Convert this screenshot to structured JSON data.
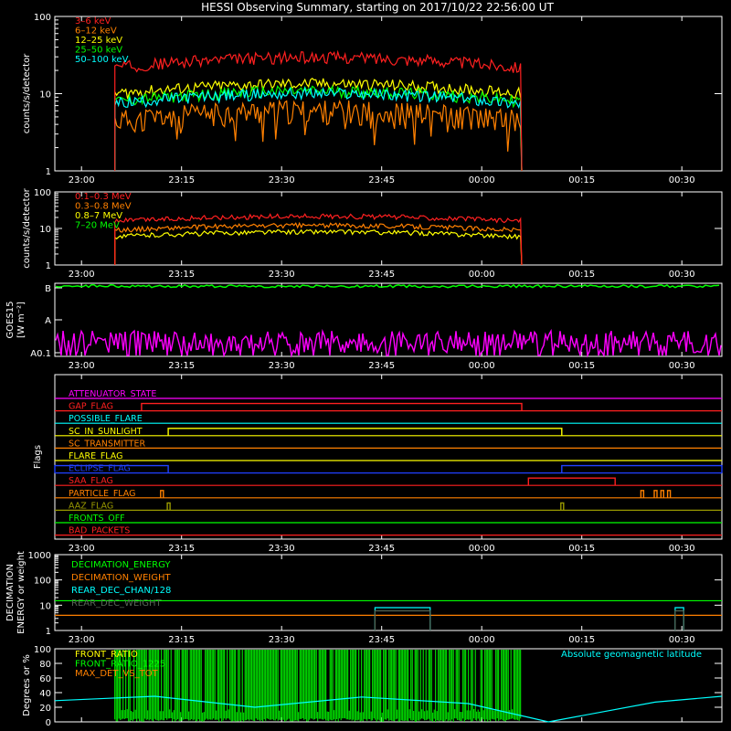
{
  "title": "HESSI Observing Summary, starting on 2017/10/22 22:56:00 UT",
  "time_ticks": [
    "23:00",
    "23:15",
    "23:30",
    "23:45",
    "00:00",
    "00:15",
    "00:30"
  ],
  "chart_data": [
    {
      "type": "line",
      "panel": "low-energy count rates",
      "ylabel": "counts/s/detector",
      "yscale": "log",
      "ylim": [
        1,
        100
      ],
      "yticks": [
        "1",
        "10",
        "100"
      ],
      "data_window": [
        "23:05",
        "00:06"
      ],
      "series": [
        {
          "name": "3–6 keV",
          "color": "#ff2020",
          "level": 22
        },
        {
          "name": "6–12 keV",
          "color": "#ff8000",
          "level": 4.5
        },
        {
          "name": "12–25 keV",
          "color": "#ffff00",
          "level": 10
        },
        {
          "name": "25–50 keV",
          "color": "#00ff00",
          "level": 8
        },
        {
          "name": "50–100 keV",
          "color": "#00ffff",
          "level": 7.5
        }
      ]
    },
    {
      "type": "line",
      "panel": "high-energy count rates",
      "ylabel": "counts/s/detector",
      "yscale": "log",
      "ylim": [
        1,
        100
      ],
      "yticks": [
        "1",
        "10",
        "100"
      ],
      "data_window": [
        "23:05",
        "00:06"
      ],
      "series": [
        {
          "name": "0.1–0.3 MeV",
          "color": "#ff2020",
          "level": 16
        },
        {
          "name": "0.3–0.8 MeV",
          "color": "#ff8000",
          "level": 9
        },
        {
          "name": "0.8–7 MeV",
          "color": "#ffff00",
          "level": 6
        },
        {
          "name": "7–20 MeV",
          "color": "#00ff00",
          "level": 0
        }
      ]
    },
    {
      "type": "line",
      "panel": "GOES",
      "ylabel": "GOES15",
      "ylabel2": "[W m⁻²]",
      "yticks": [
        "B",
        "A",
        "A0.1"
      ],
      "series": [
        {
          "name": "long",
          "color": "#00ff00",
          "level": 0.96
        },
        {
          "name": "short",
          "color": "#ff00ff",
          "level": 0.15
        }
      ]
    },
    {
      "type": "line",
      "panel": "flags",
      "ylabel": "Flags",
      "flags": [
        {
          "name": "ATTENUATOR_STATE",
          "color": "#ff00ff",
          "segments": []
        },
        {
          "name": "GAP_FLAG",
          "color": "#ff2020",
          "segments": [
            [
              "23:09",
              "00:06"
            ]
          ]
        },
        {
          "name": "POSSIBLE_FLARE",
          "color": "#00ffff",
          "segments": []
        },
        {
          "name": "SC_IN_SUNLIGHT",
          "color": "#ffff00",
          "segments": [
            [
              "23:13",
              "00:12"
            ]
          ]
        },
        {
          "name": "SC_TRANSMITTER",
          "color": "#ff8000",
          "segments": []
        },
        {
          "name": "FLARE_FLAG",
          "color": "#ffff00",
          "segments": []
        },
        {
          "name": "ECLIPSE_FLAG",
          "color": "#2040ff",
          "segments": [
            [
              "22:56",
              "23:13"
            ],
            [
              "00:12",
              "00:36"
            ]
          ]
        },
        {
          "name": "SAA_FLAG",
          "color": "#ff2020",
          "segments": [
            [
              "00:07",
              "00:20"
            ]
          ]
        },
        {
          "name": "PARTICLE_FLAG",
          "color": "#ff8000",
          "segments": [
            [
              "23:12",
              "23:12"
            ],
            [
              "00:24",
              "00:24"
            ],
            [
              "00:26",
              "00:26"
            ],
            [
              "00:27",
              "00:27"
            ],
            [
              "00:28",
              "00:28"
            ]
          ]
        },
        {
          "name": "AAZ_FLAG",
          "color": "#999900",
          "segments": [
            [
              "23:13",
              "23:13"
            ],
            [
              "00:12",
              "00:12"
            ]
          ]
        },
        {
          "name": "FRONTS_OFF",
          "color": "#00ff00",
          "segments": []
        },
        {
          "name": "BAD_PACKETS",
          "color": "#ff2020",
          "segments": []
        }
      ]
    },
    {
      "type": "line",
      "panel": "decimation",
      "ylabel": "DECIMATION",
      "ylabel2": "ENERGY or weight",
      "yscale": "log",
      "ylim": [
        1,
        1000
      ],
      "yticks": [
        "1",
        "10",
        "100",
        "1000"
      ],
      "series": [
        {
          "name": "DECIMATION_ENERGY",
          "color": "#00ff00",
          "level": 15
        },
        {
          "name": "DECIMATION_WEIGHT",
          "color": "#ff8000",
          "level": 4
        },
        {
          "name": "REAR_DEC_CHAN/128",
          "color": "#00ffff",
          "level": 8,
          "windows": [
            [
              "23:44",
              "23:52"
            ],
            [
              "00:29",
              "00:30"
            ]
          ]
        },
        {
          "name": "REAR_DEC_WEIGHT",
          "color": "#556655",
          "level": 6,
          "windows": [
            [
              "23:44",
              "23:52"
            ],
            [
              "00:29",
              "00:30"
            ]
          ]
        }
      ]
    },
    {
      "type": "line",
      "panel": "ratios",
      "ylabel": "Degrees or %",
      "ylim": [
        0,
        100
      ],
      "yticks": [
        "0",
        "20",
        "40",
        "60",
        "80",
        "100"
      ],
      "series": [
        {
          "name": "FRONT_RATIO",
          "color": "#ffff00"
        },
        {
          "name": "FRONT_RATIO_1225",
          "color": "#00ff00"
        },
        {
          "name": "MAX_DET_VS_TOT",
          "color": "#ff8000"
        },
        {
          "name": "Absolute geomagnetic latitude",
          "color": "#00ffff"
        }
      ]
    }
  ]
}
